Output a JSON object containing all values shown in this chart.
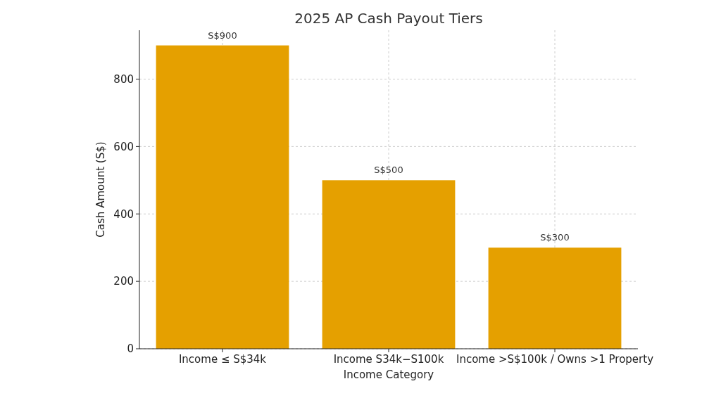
{
  "chart_data": {
    "type": "bar",
    "title": "2025 AP Cash Payout Tiers",
    "xlabel": "Income Category",
    "ylabel": "Cash Amount (S$)",
    "categories": [
      "Income ≤ S$34k",
      "Income S34k−S100k",
      "Income >S$100k / Owns >1 Property"
    ],
    "values": [
      900,
      500,
      300
    ],
    "color": "#e5a000",
    "value_labels": [
      "S$900",
      "S$500",
      "S$300"
    ],
    "ylim": [
      0,
      945
    ],
    "yticks": [
      0,
      200,
      400,
      600,
      800
    ],
    "grid": true
  }
}
